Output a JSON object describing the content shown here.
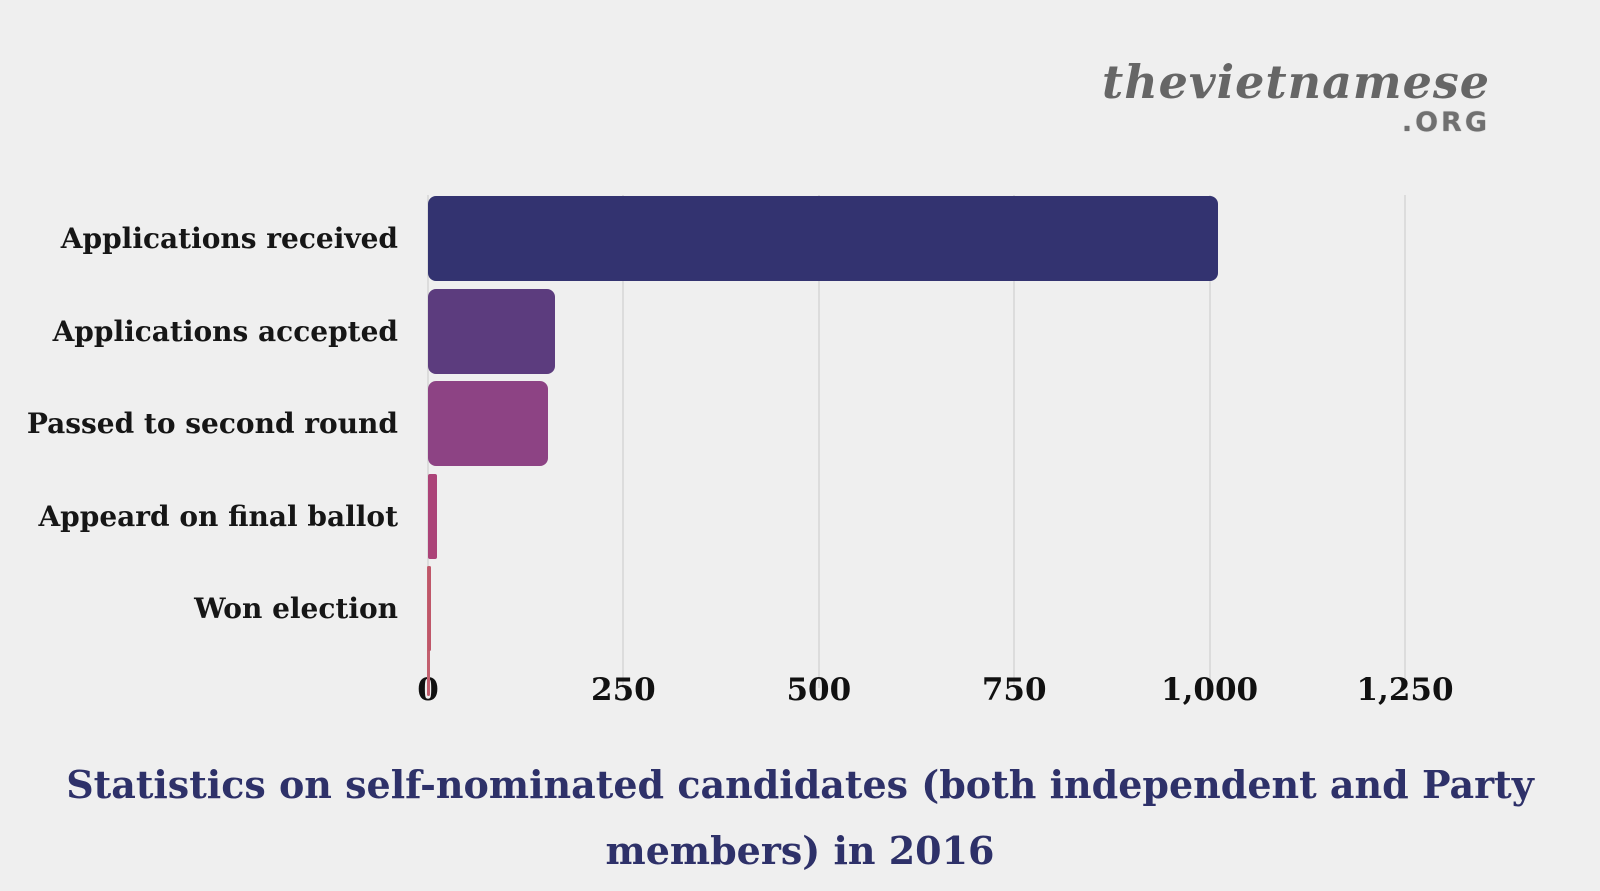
{
  "logo": {
    "brand": "thevietnamese",
    "suffix": ".ORG"
  },
  "chart_data": {
    "type": "bar",
    "orientation": "horizontal",
    "title": "Statistics on self-nominated candidates (both independent and Party members) in 2016",
    "title_lines": [
      "Statistics on self-nominated candidates (both independent and Party",
      "members) in 2016"
    ],
    "categories": [
      "Applications received",
      "Applications accepted",
      "Passed to second round",
      "Appeard on final ballot",
      "Won election"
    ],
    "values": [
      1011,
      162,
      154,
      11,
      2
    ],
    "bar_colors": [
      "#333370",
      "#5c3c7e",
      "#8d4384",
      "#ab4378",
      "#bf5669"
    ],
    "x_ticks": [
      "0",
      "250",
      "500",
      "750",
      "1,000",
      "1,250"
    ],
    "x_tick_values": [
      0,
      250,
      500,
      750,
      1000,
      1250
    ],
    "xlim": [
      0,
      1371
    ],
    "grid": true,
    "legend": "none",
    "background_color": "#efefef",
    "gridline_color": "#dcdcdc",
    "title_color": "#2e3169"
  }
}
